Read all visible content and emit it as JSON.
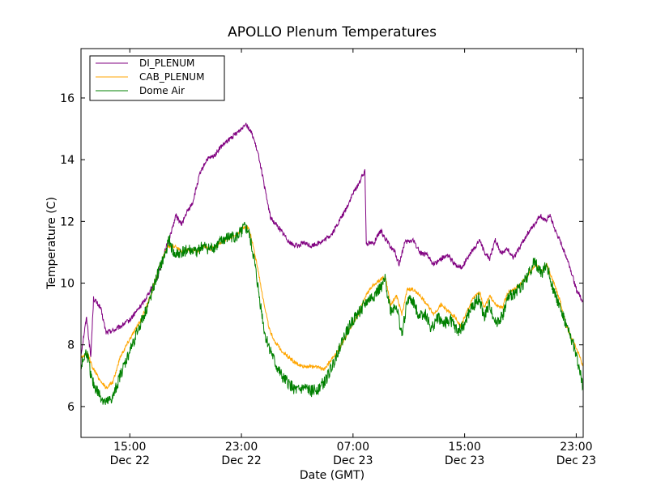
{
  "chart_data": {
    "type": "line",
    "title": "APOLLO Plenum Temperatures",
    "xlabel": "Date (GMT)",
    "ylabel": "Temperature (C)",
    "xlim": [
      0,
      36
    ],
    "ylim": [
      5,
      17.6
    ],
    "grid": false,
    "legend_position": "top-left",
    "x_ticks": [
      {
        "value": 3.5,
        "time": "15:00",
        "date": "Dec 22"
      },
      {
        "value": 11.5,
        "time": "23:00",
        "date": "Dec 22"
      },
      {
        "value": 19.5,
        "time": "07:00",
        "date": "Dec 23"
      },
      {
        "value": 27.5,
        "time": "15:00",
        "date": "Dec 23"
      },
      {
        "value": 35.5,
        "time": "23:00",
        "date": "Dec 23"
      }
    ],
    "y_ticks": [
      6,
      8,
      10,
      12,
      14,
      16
    ],
    "series": [
      {
        "name": "DI_PLENUM",
        "color": "#800080",
        "noise": 0.08,
        "points": [
          [
            0,
            7.7
          ],
          [
            0.4,
            8.9
          ],
          [
            0.7,
            7.6
          ],
          [
            0.9,
            9.5
          ],
          [
            1.4,
            9.2
          ],
          [
            1.8,
            8.4
          ],
          [
            2.5,
            8.5
          ],
          [
            3.5,
            8.8
          ],
          [
            4.5,
            9.4
          ],
          [
            5.5,
            10.2
          ],
          [
            6.0,
            11.0
          ],
          [
            6.5,
            11.7
          ],
          [
            6.8,
            12.2
          ],
          [
            7.2,
            11.9
          ],
          [
            7.6,
            12.3
          ],
          [
            8.0,
            12.6
          ],
          [
            8.5,
            13.5
          ],
          [
            9.0,
            14.0
          ],
          [
            9.5,
            14.1
          ],
          [
            10.0,
            14.4
          ],
          [
            10.5,
            14.6
          ],
          [
            11.0,
            14.8
          ],
          [
            11.5,
            15.0
          ],
          [
            11.8,
            15.2
          ],
          [
            12.3,
            14.8
          ],
          [
            12.8,
            14.0
          ],
          [
            13.2,
            13.0
          ],
          [
            13.6,
            12.1
          ],
          [
            14.0,
            11.9
          ],
          [
            14.5,
            11.6
          ],
          [
            15.0,
            11.3
          ],
          [
            15.5,
            11.2
          ],
          [
            16.0,
            11.3
          ],
          [
            16.5,
            11.2
          ],
          [
            17.0,
            11.3
          ],
          [
            17.5,
            11.4
          ],
          [
            18.0,
            11.6
          ],
          [
            18.5,
            12.0
          ],
          [
            19.0,
            12.4
          ],
          [
            19.5,
            12.9
          ],
          [
            20.0,
            13.3
          ],
          [
            20.3,
            13.6
          ],
          [
            20.35,
            13.7
          ],
          [
            20.45,
            11.3
          ],
          [
            21.0,
            11.3
          ],
          [
            21.5,
            11.7
          ],
          [
            22.0,
            11.3
          ],
          [
            22.5,
            11.0
          ],
          [
            22.8,
            10.6
          ],
          [
            23.2,
            11.3
          ],
          [
            23.8,
            11.4
          ],
          [
            24.3,
            11.0
          ],
          [
            24.8,
            10.9
          ],
          [
            25.3,
            10.6
          ],
          [
            25.8,
            10.8
          ],
          [
            26.3,
            10.9
          ],
          [
            26.8,
            10.6
          ],
          [
            27.3,
            10.5
          ],
          [
            27.8,
            10.9
          ],
          [
            28.3,
            11.2
          ],
          [
            28.6,
            11.4
          ],
          [
            28.9,
            11.0
          ],
          [
            29.3,
            10.8
          ],
          [
            29.7,
            11.4
          ],
          [
            30.1,
            11.0
          ],
          [
            30.6,
            11.1
          ],
          [
            31.0,
            10.8
          ],
          [
            31.5,
            11.2
          ],
          [
            32.0,
            11.6
          ],
          [
            32.5,
            11.9
          ],
          [
            32.9,
            12.2
          ],
          [
            33.3,
            12.0
          ],
          [
            33.6,
            12.2
          ],
          [
            34.0,
            11.7
          ],
          [
            34.5,
            11.2
          ],
          [
            35.0,
            10.6
          ],
          [
            35.5,
            9.8
          ],
          [
            36.0,
            9.4
          ]
        ]
      },
      {
        "name": "CAB_PLENUM",
        "color": "#ffa500",
        "noise": 0.06,
        "points": [
          [
            0,
            7.6
          ],
          [
            0.5,
            7.7
          ],
          [
            0.8,
            7.3
          ],
          [
            1.3,
            6.9
          ],
          [
            1.8,
            6.6
          ],
          [
            2.3,
            6.8
          ],
          [
            2.8,
            7.6
          ],
          [
            3.5,
            8.2
          ],
          [
            4.3,
            8.8
          ],
          [
            5.0,
            9.6
          ],
          [
            5.6,
            10.5
          ],
          [
            6.2,
            11.2
          ],
          [
            6.8,
            11.2
          ],
          [
            7.2,
            11.0
          ],
          [
            7.8,
            11.1
          ],
          [
            8.3,
            11.0
          ],
          [
            8.8,
            11.2
          ],
          [
            9.3,
            11.1
          ],
          [
            9.8,
            11.2
          ],
          [
            10.3,
            11.4
          ],
          [
            10.8,
            11.5
          ],
          [
            11.3,
            11.6
          ],
          [
            11.6,
            11.8
          ],
          [
            12.0,
            11.8
          ],
          [
            12.3,
            11.3
          ],
          [
            12.7,
            10.4
          ],
          [
            13.1,
            9.4
          ],
          [
            13.5,
            8.5
          ],
          [
            13.9,
            8.1
          ],
          [
            14.4,
            7.8
          ],
          [
            14.9,
            7.6
          ],
          [
            15.4,
            7.4
          ],
          [
            15.9,
            7.3
          ],
          [
            16.4,
            7.3
          ],
          [
            16.9,
            7.3
          ],
          [
            17.4,
            7.2
          ],
          [
            17.9,
            7.5
          ],
          [
            18.4,
            7.8
          ],
          [
            18.9,
            8.2
          ],
          [
            19.4,
            8.6
          ],
          [
            19.9,
            9.0
          ],
          [
            20.4,
            9.6
          ],
          [
            20.9,
            9.9
          ],
          [
            21.4,
            10.1
          ],
          [
            21.8,
            10.2
          ],
          [
            22.2,
            9.3
          ],
          [
            22.6,
            9.6
          ],
          [
            23.0,
            9.0
          ],
          [
            23.4,
            9.8
          ],
          [
            23.8,
            9.8
          ],
          [
            24.3,
            9.6
          ],
          [
            24.8,
            9.3
          ],
          [
            25.3,
            9.0
          ],
          [
            25.8,
            9.3
          ],
          [
            26.3,
            9.1
          ],
          [
            26.8,
            8.9
          ],
          [
            27.2,
            8.6
          ],
          [
            27.6,
            9.0
          ],
          [
            28.1,
            9.5
          ],
          [
            28.6,
            9.7
          ],
          [
            28.9,
            9.2
          ],
          [
            29.3,
            9.6
          ],
          [
            29.7,
            9.3
          ],
          [
            30.2,
            9.2
          ],
          [
            30.6,
            9.7
          ],
          [
            31.1,
            9.8
          ],
          [
            31.6,
            10.0
          ],
          [
            32.1,
            10.3
          ],
          [
            32.6,
            10.6
          ],
          [
            33.0,
            10.4
          ],
          [
            33.4,
            10.6
          ],
          [
            33.8,
            10.1
          ],
          [
            34.3,
            9.5
          ],
          [
            34.8,
            8.6
          ],
          [
            35.3,
            8.1
          ],
          [
            35.7,
            7.7
          ],
          [
            36.0,
            7.3
          ]
        ]
      },
      {
        "name": "Dome Air",
        "color": "#008000",
        "noise": 0.2,
        "points": [
          [
            0,
            7.3
          ],
          [
            0.4,
            7.8
          ],
          [
            0.8,
            6.8
          ],
          [
            1.3,
            6.4
          ],
          [
            1.8,
            6.1
          ],
          [
            2.3,
            6.3
          ],
          [
            2.8,
            7.0
          ],
          [
            3.5,
            7.8
          ],
          [
            4.2,
            8.6
          ],
          [
            4.9,
            9.4
          ],
          [
            5.5,
            10.3
          ],
          [
            6.0,
            10.9
          ],
          [
            6.3,
            11.4
          ],
          [
            6.7,
            10.9
          ],
          [
            7.2,
            11.0
          ],
          [
            7.7,
            11.1
          ],
          [
            8.2,
            11.0
          ],
          [
            8.7,
            11.2
          ],
          [
            9.2,
            11.1
          ],
          [
            9.7,
            11.2
          ],
          [
            10.2,
            11.4
          ],
          [
            10.7,
            11.5
          ],
          [
            11.2,
            11.5
          ],
          [
            11.7,
            11.8
          ],
          [
            12.0,
            11.7
          ],
          [
            12.4,
            10.8
          ],
          [
            12.8,
            9.5
          ],
          [
            13.2,
            8.3
          ],
          [
            13.6,
            7.8
          ],
          [
            14.0,
            7.3
          ],
          [
            14.5,
            6.9
          ],
          [
            15.0,
            6.7
          ],
          [
            15.5,
            6.5
          ],
          [
            16.0,
            6.6
          ],
          [
            16.5,
            6.5
          ],
          [
            17.0,
            6.6
          ],
          [
            17.5,
            6.8
          ],
          [
            18.0,
            7.3
          ],
          [
            18.5,
            7.9
          ],
          [
            19.0,
            8.4
          ],
          [
            19.5,
            8.8
          ],
          [
            20.0,
            9.1
          ],
          [
            20.5,
            9.4
          ],
          [
            21.0,
            9.6
          ],
          [
            21.4,
            9.8
          ],
          [
            21.8,
            10.1
          ],
          [
            22.2,
            9.1
          ],
          [
            22.6,
            9.3
          ],
          [
            23.0,
            8.3
          ],
          [
            23.4,
            9.5
          ],
          [
            23.8,
            9.4
          ],
          [
            24.2,
            9.0
          ],
          [
            24.7,
            9.0
          ],
          [
            25.1,
            8.5
          ],
          [
            25.6,
            8.9
          ],
          [
            26.0,
            8.7
          ],
          [
            26.5,
            8.8
          ],
          [
            27.0,
            8.4
          ],
          [
            27.5,
            8.7
          ],
          [
            28.0,
            9.2
          ],
          [
            28.5,
            9.5
          ],
          [
            28.9,
            8.9
          ],
          [
            29.3,
            9.3
          ],
          [
            29.7,
            8.7
          ],
          [
            30.2,
            8.9
          ],
          [
            30.6,
            9.5
          ],
          [
            31.1,
            9.7
          ],
          [
            31.6,
            9.9
          ],
          [
            32.1,
            10.3
          ],
          [
            32.5,
            10.7
          ],
          [
            33.0,
            10.3
          ],
          [
            33.4,
            10.6
          ],
          [
            33.8,
            9.9
          ],
          [
            34.3,
            9.3
          ],
          [
            34.8,
            8.6
          ],
          [
            35.3,
            8.0
          ],
          [
            35.7,
            7.3
          ],
          [
            36.0,
            6.6
          ]
        ]
      }
    ]
  }
}
